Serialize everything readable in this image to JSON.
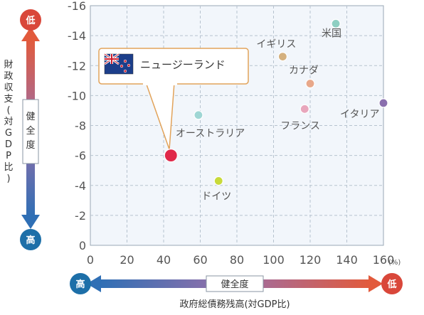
{
  "chart_data": {
    "type": "scatter",
    "title": "",
    "xlabel": "政府総債務残高(対GDP比)",
    "ylabel": "財政収支(対GDP比)",
    "x_unit": "(%)",
    "xlim": [
      0,
      160
    ],
    "ylim": [
      -16,
      0
    ],
    "x_ticks": [
      "0",
      "20",
      "40",
      "60",
      "80",
      "100",
      "120",
      "140",
      "160"
    ],
    "y_ticks": [
      "-16",
      "-14",
      "-12",
      "-10",
      "-8",
      "-6",
      "-4",
      "-2",
      "0"
    ],
    "grid": true,
    "points": [
      {
        "name": "米国",
        "x": 134,
        "y": -14.8,
        "color": "#8ecfc2"
      },
      {
        "name": "イギリス",
        "x": 105,
        "y": -12.6,
        "color": "#d4b07e"
      },
      {
        "name": "カナダ",
        "x": 120,
        "y": -10.8,
        "color": "#e8a88a"
      },
      {
        "name": "イタリア",
        "x": 160,
        "y": -9.5,
        "color": "#8a6fae"
      },
      {
        "name": "フランス",
        "x": 117,
        "y": -9.1,
        "color": "#e8a6bc"
      },
      {
        "name": "オーストラリア",
        "x": 59,
        "y": -8.7,
        "color": "#9fd6d4"
      },
      {
        "name": "ニュージーランド",
        "x": 44,
        "y": -6.0,
        "color": "#e0294a",
        "highlight": true
      },
      {
        "name": "ドイツ",
        "x": 70,
        "y": -4.3,
        "color": "#c8da3a"
      }
    ],
    "health_indicator": {
      "label": "健全度",
      "low": "低",
      "high": "高",
      "low_color": "#d9473a",
      "high_color": "#1d6fa8"
    }
  }
}
